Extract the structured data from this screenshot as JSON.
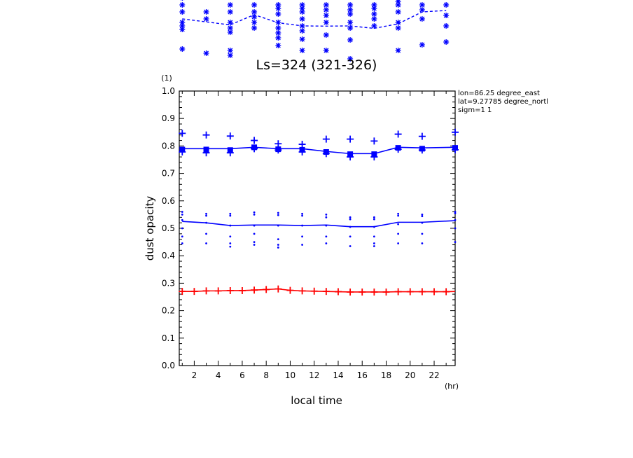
{
  "chart_data": {
    "type": "line",
    "title": "Ls=324 (321-326)",
    "xlabel": "local time",
    "xunit": "(hr)",
    "ylabel": "dust opacity",
    "yunit": "(1)",
    "xlim": [
      0.75,
      23.75
    ],
    "ylim": [
      0.0,
      1.0
    ],
    "x_ticks": [
      "2",
      "4",
      "6",
      "8",
      "10",
      "12",
      "14",
      "16",
      "18",
      "20",
      "22"
    ],
    "y_ticks": [
      "0.0",
      "0.1",
      "0.2",
      "0.3",
      "0.4",
      "0.5",
      "0.6",
      "0.7",
      "0.8",
      "0.9",
      "1.0"
    ],
    "info_lines": [
      "lon=86.25 degree_east",
      "lat=9.27785 degree_north",
      "sigm=1 1"
    ],
    "series": [
      {
        "color": "#0000ff",
        "style": "solid",
        "x": [
          1,
          3,
          5,
          7,
          9,
          11,
          13,
          15,
          17,
          19,
          21,
          23.75
        ],
        "values": [
          0.79,
          0.79,
          0.79,
          0.795,
          0.79,
          0.79,
          0.78,
          0.772,
          0.772,
          0.795,
          0.793,
          0.795
        ],
        "square_markers": [
          0.787,
          0.787,
          0.785,
          0.795,
          0.788,
          0.786,
          0.778,
          0.77,
          0.77,
          0.793,
          0.79,
          0.793
        ],
        "plus_markers_high": [
          0.846,
          0.84,
          0.836,
          0.82,
          0.808,
          0.806,
          0.825,
          0.825,
          0.818,
          0.843,
          0.835,
          0.85
        ],
        "plus_markers_low": [
          0.778,
          0.775,
          0.775,
          0.79,
          0.785,
          0.778,
          0.772,
          0.76,
          0.76,
          0.788,
          0.785,
          0.786
        ]
      },
      {
        "color": "#0000ff",
        "style": "solid",
        "x": [
          1,
          3,
          5,
          7,
          9,
          11,
          13,
          15,
          17,
          19,
          21,
          23.75
        ],
        "values": [
          0.525,
          0.52,
          0.51,
          0.512,
          0.512,
          0.51,
          0.512,
          0.506,
          0.506,
          0.522,
          0.522,
          0.528
        ],
        "dots": [
          [
            0.56,
            0.55,
            0.53,
            0.5,
            0.47,
            0.445
          ],
          [
            0.553,
            0.546,
            0.52,
            0.48,
            0.445
          ],
          [
            0.553,
            0.546,
            0.51,
            0.47,
            0.445,
            0.433
          ],
          [
            0.558,
            0.55,
            0.51,
            0.48,
            0.45,
            0.44
          ],
          [
            0.556,
            0.548,
            0.51,
            0.46,
            0.44,
            0.43
          ],
          [
            0.553,
            0.546,
            0.51,
            0.47,
            0.44
          ],
          [
            0.55,
            0.54,
            0.51,
            0.47,
            0.445
          ],
          [
            0.54,
            0.533,
            0.505,
            0.47,
            0.435
          ],
          [
            0.54,
            0.533,
            0.505,
            0.47,
            0.445,
            0.435
          ],
          [
            0.553,
            0.546,
            0.515,
            0.48,
            0.445
          ],
          [
            0.55,
            0.544,
            0.52,
            0.48,
            0.445
          ],
          [
            0.56,
            0.555,
            0.53,
            0.5,
            0.45
          ]
        ]
      },
      {
        "color": "#ff0000",
        "style": "solid",
        "x": [
          1,
          2,
          3,
          4,
          5,
          6,
          7,
          8,
          9,
          10,
          11,
          12,
          13,
          14,
          15,
          16,
          17,
          18,
          19,
          20,
          21,
          22,
          23,
          23.75
        ],
        "values": [
          0.27,
          0.27,
          0.272,
          0.272,
          0.273,
          0.273,
          0.275,
          0.277,
          0.279,
          0.274,
          0.272,
          0.271,
          0.27,
          0.269,
          0.268,
          0.268,
          0.268,
          0.268,
          0.269,
          0.269,
          0.269,
          0.269,
          0.269,
          0.27
        ]
      }
    ],
    "top_panel": {
      "dashed_line_x": [
        1,
        5,
        7,
        9,
        11,
        13,
        15,
        17,
        19,
        21,
        23
      ],
      "dashed_line_y": [
        0.22,
        0.305,
        0.16,
        0.275,
        0.32,
        0.323,
        0.32,
        0.355,
        0.29,
        0.12,
        0.1
      ]
    }
  }
}
